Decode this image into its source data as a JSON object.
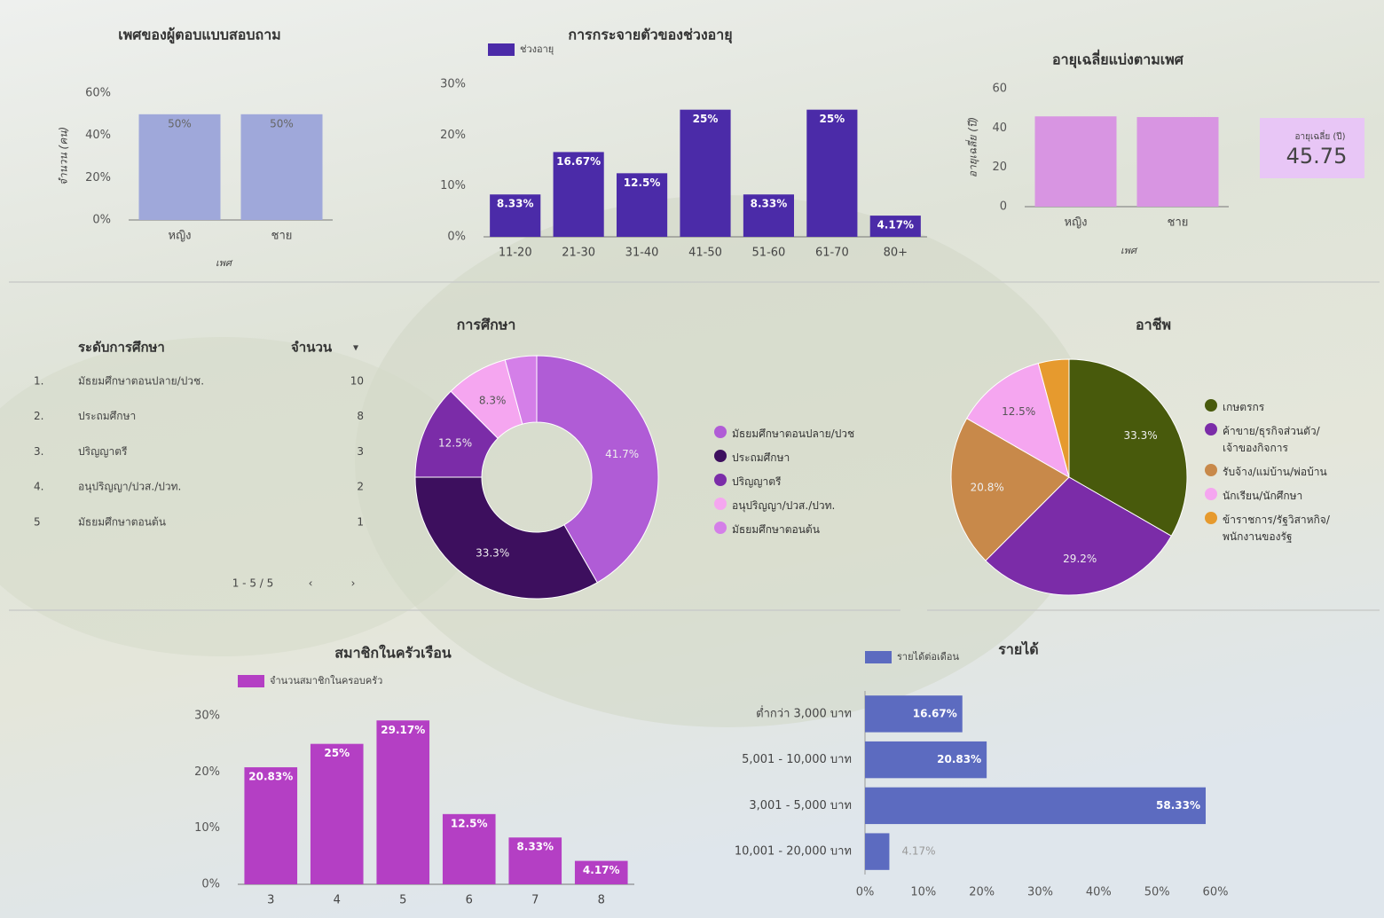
{
  "chart_data": [
    {
      "type": "bar",
      "title": "เพศของผู้ตอบแบบสอบถาม",
      "x_label": "เพศ",
      "y_label": "จำนวน (คน)",
      "categories": [
        "หญิง",
        "ชาย"
      ],
      "values": [
        50,
        50
      ],
      "value_labels": [
        "50%",
        "50%"
      ],
      "color": "#9fa8da",
      "ylim": [
        0,
        60
      ],
      "yticks": [
        {
          "value": 0,
          "label": "0%"
        },
        {
          "value": 20,
          "label": "20%"
        },
        {
          "value": 40,
          "label": "40%"
        },
        {
          "value": 60,
          "label": "60%"
        }
      ]
    },
    {
      "type": "bar",
      "title": "การกระจายตัวของช่วงอายุ",
      "categories": [
        "11-20",
        "21-30",
        "31-40",
        "41-50",
        "51-60",
        "61-70",
        "80+"
      ],
      "series": [
        {
          "name": "ช่วงอายุ",
          "color": "#4b2ba8",
          "values": [
            8.33,
            16.67,
            12.5,
            25,
            8.33,
            25,
            4.17
          ],
          "value_labels": [
            "8.33%",
            "16.67%",
            "12.5%",
            "25%",
            "8.33%",
            "25%",
            "4.17%"
          ]
        }
      ],
      "ylim": [
        0,
        30
      ],
      "yticks": [
        {
          "value": 0,
          "label": "0%"
        },
        {
          "value": 10,
          "label": "10%"
        },
        {
          "value": 20,
          "label": "20%"
        },
        {
          "value": 30,
          "label": "30%"
        }
      ]
    },
    {
      "type": "bar",
      "title": "อายุเฉลี่ยแบ่งตามเพศ",
      "x_label": "เพศ",
      "y_label": "อายุเฉลี่ย (ปี)",
      "categories": [
        "หญิง",
        "ชาย"
      ],
      "values": [
        45.92,
        45.58
      ],
      "color": "#d895e2",
      "ylim": [
        0,
        60
      ],
      "yticks": [
        0,
        20,
        40,
        60
      ]
    },
    {
      "type": "pie",
      "donut": true,
      "title": "การศึกษา",
      "categories": [
        "มัธยมศึกษาตอนปลาย/ปวช",
        "ประถมศึกษา",
        "ปริญญาตรี",
        "อนุปริญญา/ปวส./ปวท.",
        "มัธยมศึกษาตอนต้น"
      ],
      "values": [
        41.7,
        33.3,
        12.5,
        8.3,
        4.2
      ],
      "value_labels": [
        "41.7%",
        "33.3%",
        "12.5%",
        "8.3%",
        null
      ],
      "colors": [
        "#b05cd6",
        "#3d0f5e",
        "#7b2ca8",
        "#f5a6f0",
        "#d47fe8"
      ]
    },
    {
      "type": "pie",
      "title": "อาชีพ",
      "categories": [
        "เกษตรกร",
        "ค้าขาย/ธุรกิจส่วนตัว/เจ้าของกิจการ",
        "รับจ้าง/แม่บ้าน/พ่อบ้าน",
        "นักเรียน/นักศึกษา",
        "ข้าราชการ/รัฐวิสาหกิจ/พนักงานของรัฐ"
      ],
      "values": [
        33.3,
        29.2,
        20.8,
        12.5,
        4.2
      ],
      "value_labels": [
        "33.3%",
        "29.2%",
        "20.8%",
        "12.5%",
        null
      ],
      "colors": [
        "#485a0c",
        "#7b2ca8",
        "#c8894a",
        "#f5a6f0",
        "#e69a2e"
      ]
    },
    {
      "type": "bar",
      "title": "สมาชิกในครัวเรือน",
      "categories": [
        "3",
        "4",
        "5",
        "6",
        "7",
        "8"
      ],
      "series": [
        {
          "name": "จำนวนสมาชิกในครอบครัว",
          "color": "#b43fc4",
          "values": [
            20.83,
            25,
            29.17,
            12.5,
            8.33,
            4.17
          ],
          "value_labels": [
            "20.83%",
            "25%",
            "29.17%",
            "12.5%",
            "8.33%",
            "4.17%"
          ]
        }
      ],
      "ylim": [
        0,
        30
      ],
      "yticks": [
        {
          "value": 0,
          "label": "0%"
        },
        {
          "value": 10,
          "label": "10%"
        },
        {
          "value": 20,
          "label": "20%"
        },
        {
          "value": 30,
          "label": "30%"
        }
      ]
    },
    {
      "type": "bar",
      "horizontal": true,
      "title": "รายได้",
      "categories": [
        "ต่ำกว่า 3,000 บาท",
        "5,001 - 10,000 บาท",
        "3,001 - 5,000 บาท",
        "10,001 - 20,000 บาท"
      ],
      "series": [
        {
          "name": "รายได้ต่อเดือน",
          "color": "#5c6bc0",
          "values": [
            16.67,
            20.83,
            58.33,
            4.17
          ],
          "value_labels": [
            "16.67%",
            "20.83%",
            "58.33%",
            "4.17%"
          ]
        }
      ],
      "xlim": [
        0,
        60
      ],
      "xticks": [
        {
          "value": 0,
          "label": "0%"
        },
        {
          "value": 10,
          "label": "10%"
        },
        {
          "value": 20,
          "label": "20%"
        },
        {
          "value": 30,
          "label": "30%"
        },
        {
          "value": 40,
          "label": "40%"
        },
        {
          "value": 50,
          "label": "50%"
        },
        {
          "value": 60,
          "label": "60%"
        }
      ]
    }
  ],
  "table": {
    "header": [
      "ระดับการศึกษา",
      "จำนวน"
    ],
    "rows": [
      [
        "1.",
        "มัธยมศึกษาตอนปลาย/ปวช.",
        10
      ],
      [
        "2.",
        "ประถมศึกษา",
        8
      ],
      [
        "3.",
        "ปริญญาตรี",
        3
      ],
      [
        "4.",
        "อนุปริญญา/ปวส./ปวท.",
        2
      ],
      [
        "5",
        "มัธยมศึกษาตอนต้น",
        1
      ]
    ],
    "pagination": "1 - 5 / 5"
  },
  "scorecard": {
    "label": "อายุเฉลี่ย (ปี)",
    "value": 45.75
  }
}
